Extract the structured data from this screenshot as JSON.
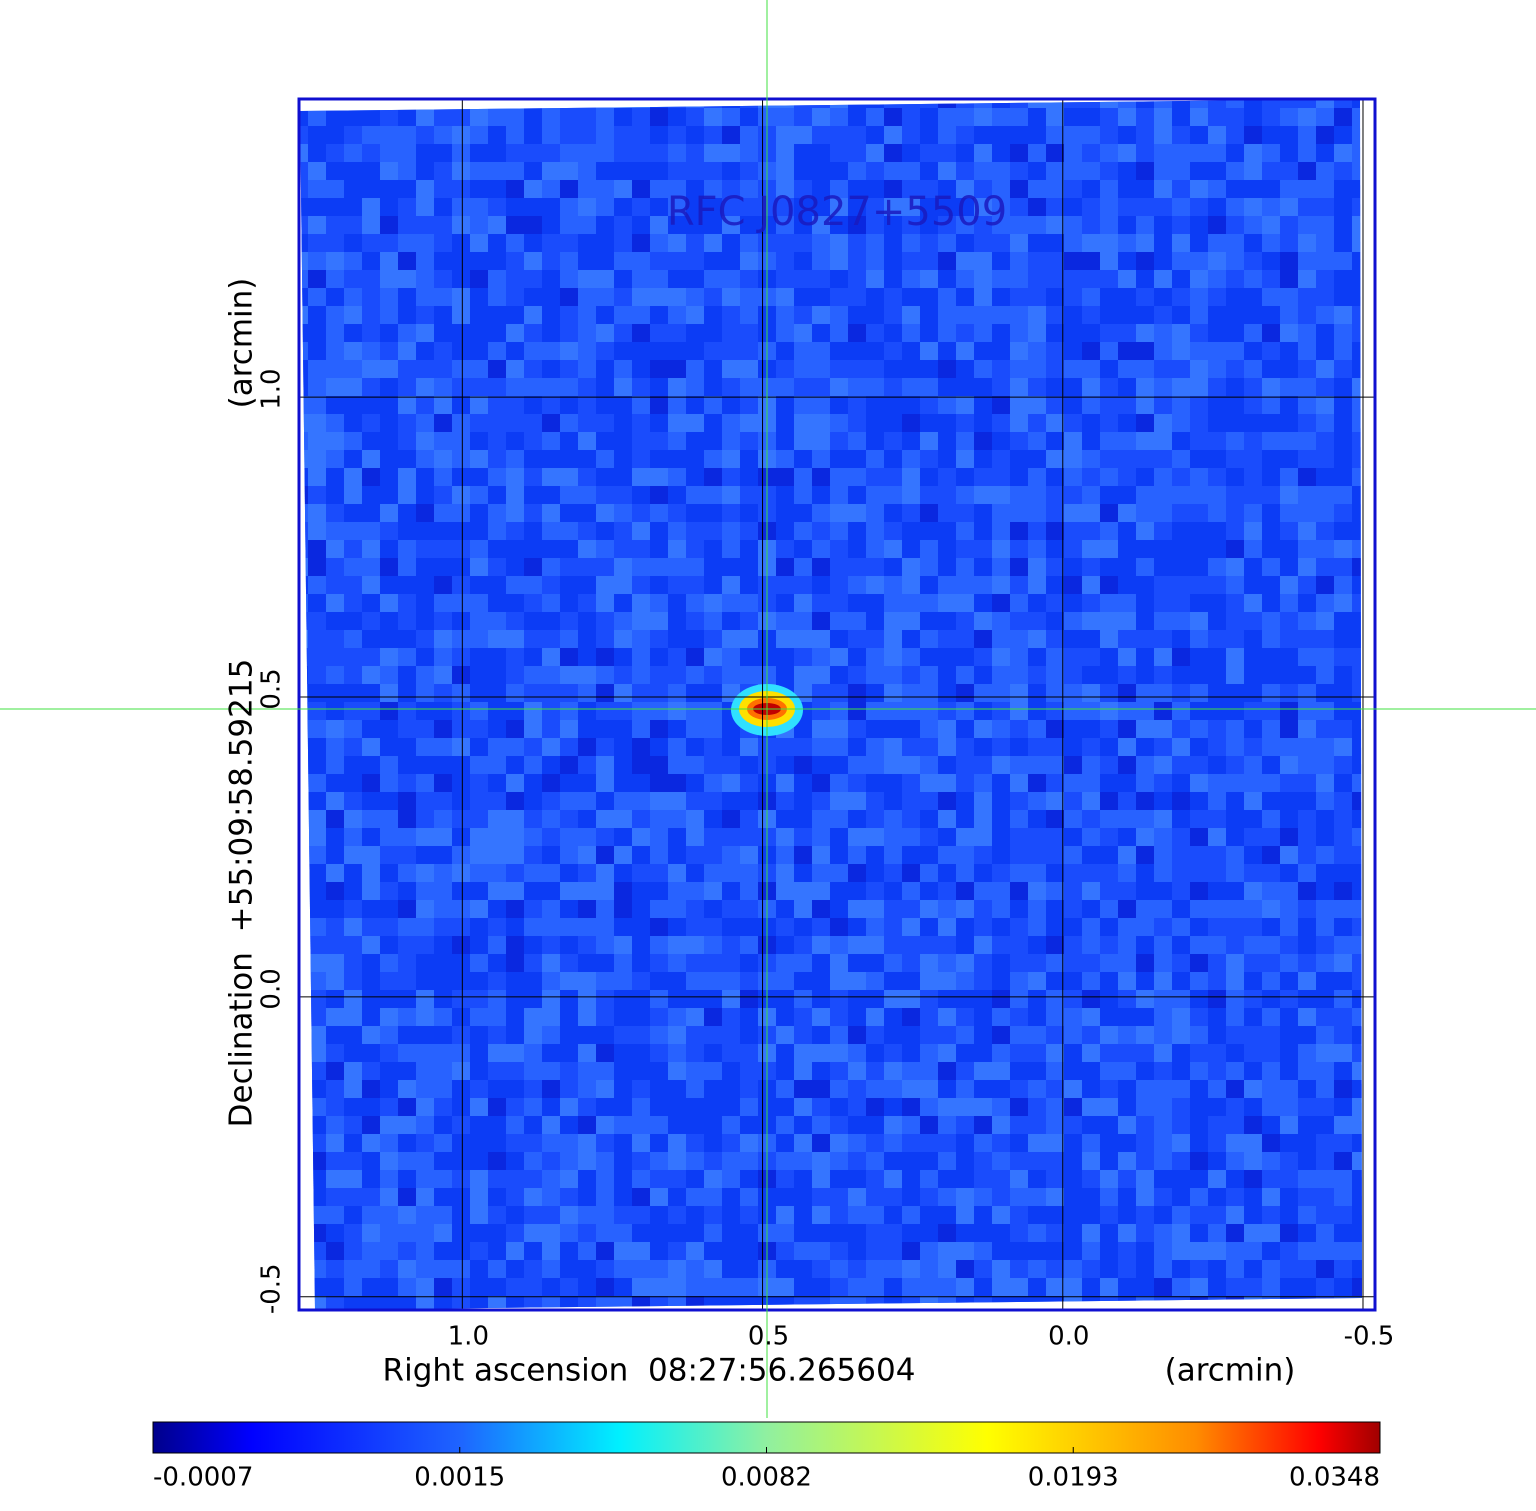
{
  "chart_data": {
    "type": "image",
    "title": "RFC J0827+5509",
    "xlabel": "Right ascension  08:27:56.265604",
    "xunit": "(arcmin)",
    "ylabel": "Declination  +55:09:58.59215",
    "yunit": "(arcmin)",
    "xlim": [
      1.272,
      -0.52
    ],
    "ylim": [
      -0.522,
      1.497
    ],
    "xticks": [
      {
        "value": 1,
        "label": "1.0"
      },
      0.5,
      {
        "value": 0,
        "label": "0.0"
      },
      -0.5
    ],
    "yticks": [
      -0.5,
      {
        "value": 0,
        "label": "0.0"
      },
      0.5,
      {
        "value": 1,
        "label": "1.0"
      }
    ],
    "grid": true,
    "colorbar_ticks": [
      -0.0007,
      0.0015,
      0.0082,
      0.0193,
      0.0348
    ]
  }
}
